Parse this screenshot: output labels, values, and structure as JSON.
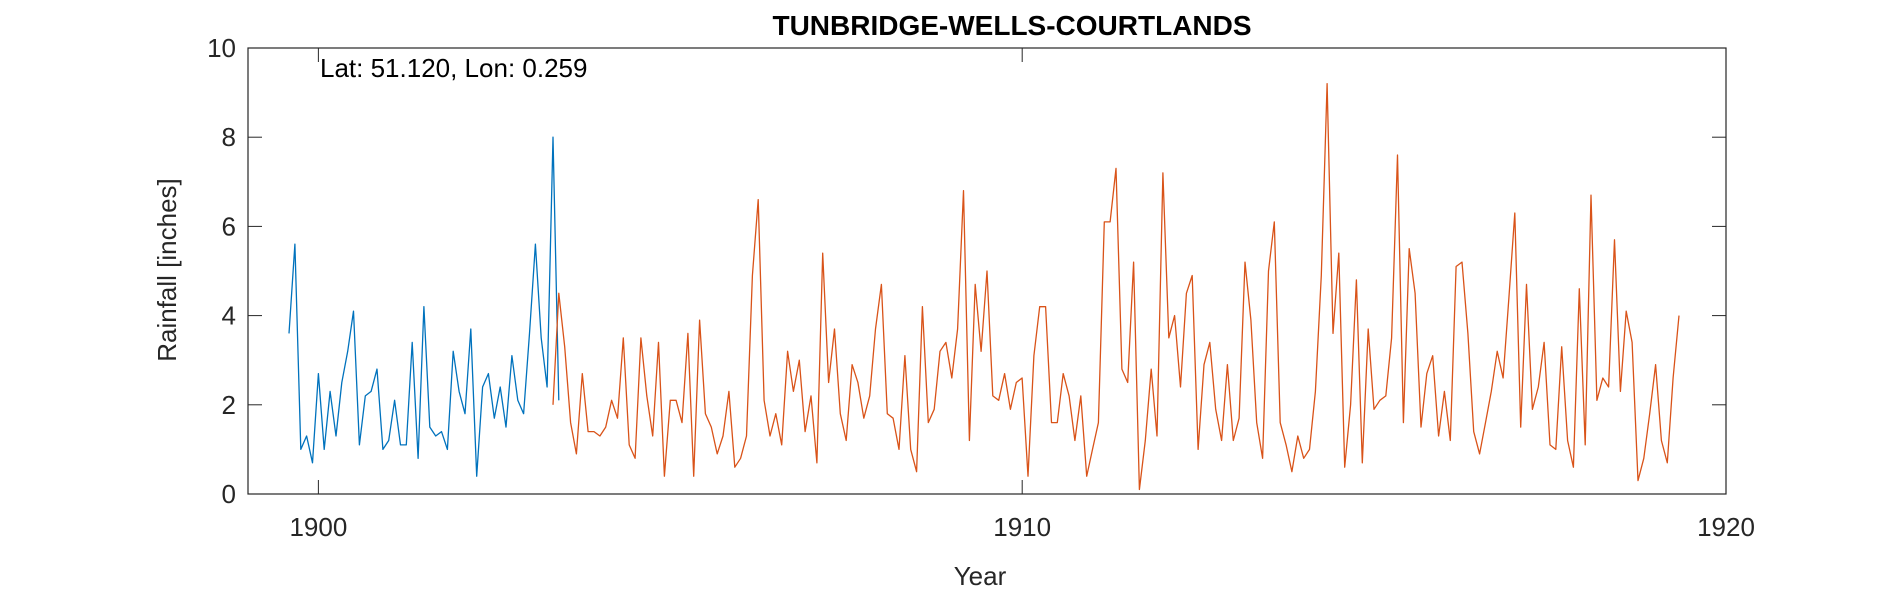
{
  "chart_data": {
    "type": "line",
    "title": "TUNBRIDGE-WELLS-COURTLANDS",
    "annotation": "Lat: 51.120, Lon: 0.259",
    "xlabel": "Year",
    "ylabel": "Rainfall [inches]",
    "xlim": [
      1899,
      1920
    ],
    "ylim": [
      0,
      10
    ],
    "xticks": [
      1900,
      1910,
      1920
    ],
    "yticks": [
      0,
      2,
      4,
      6,
      8,
      10
    ],
    "grid": false,
    "series": [
      {
        "color": "#0072BD",
        "x_start": 1899.583,
        "x_step": 0.08333,
        "values": [
          3.6,
          5.6,
          1.0,
          1.3,
          0.7,
          2.7,
          1.0,
          2.3,
          1.3,
          2.5,
          3.2,
          4.1,
          1.1,
          2.2,
          2.3,
          2.8,
          1.0,
          1.2,
          2.1,
          1.1,
          1.1,
          3.4,
          0.8,
          4.2,
          1.5,
          1.3,
          1.4,
          1.0,
          3.2,
          2.3,
          1.8,
          3.7,
          0.4,
          2.4,
          2.7,
          1.7,
          2.4,
          1.5,
          3.1,
          2.1,
          1.8,
          3.6,
          5.6,
          3.5,
          2.4,
          8.0,
          2.1
        ]
      },
      {
        "color": "#D95319",
        "x_start": 1903.333,
        "x_step": 0.08333,
        "values": [
          2.0,
          4.5,
          3.3,
          1.6,
          0.9,
          2.7,
          1.4,
          1.4,
          1.3,
          1.5,
          2.1,
          1.7,
          3.5,
          1.1,
          0.8,
          3.5,
          2.2,
          1.3,
          3.4,
          0.4,
          2.1,
          2.1,
          1.6,
          3.6,
          0.4,
          3.9,
          1.8,
          1.5,
          0.9,
          1.3,
          2.3,
          0.6,
          0.8,
          1.3,
          4.9,
          6.6,
          2.1,
          1.3,
          1.8,
          1.1,
          3.2,
          2.3,
          3.0,
          1.4,
          2.2,
          0.7,
          5.4,
          2.5,
          3.7,
          1.8,
          1.2,
          2.9,
          2.5,
          1.7,
          2.2,
          3.7,
          4.7,
          1.8,
          1.7,
          1.0,
          3.1,
          1.0,
          0.5,
          4.2,
          1.6,
          1.9,
          3.2,
          3.4,
          2.6,
          3.7,
          6.8,
          1.2,
          4.7,
          3.2,
          5.0,
          2.2,
          2.1,
          2.7,
          1.9,
          2.5,
          2.6,
          0.4,
          3.1,
          4.2,
          4.2,
          1.6,
          1.6,
          2.7,
          2.2,
          1.2,
          2.2,
          0.4,
          1.0,
          1.6,
          6.1,
          6.1,
          7.3,
          2.8,
          2.5,
          5.2,
          0.1,
          1.2,
          2.8,
          1.3,
          7.2,
          3.5,
          4.0,
          2.4,
          4.5,
          4.9,
          1.0,
          2.9,
          3.4,
          1.9,
          1.2,
          2.9,
          1.2,
          1.7,
          5.2,
          3.9,
          1.6,
          0.8,
          5.0,
          6.1,
          1.6,
          1.1,
          0.5,
          1.3,
          0.8,
          1.0,
          2.3,
          4.9,
          9.2,
          3.6,
          5.4,
          0.6,
          2.0,
          4.8,
          0.7,
          3.7,
          1.9,
          2.1,
          2.2,
          3.5,
          7.6,
          1.6,
          5.5,
          4.5,
          1.5,
          2.7,
          3.1,
          1.3,
          2.3,
          1.2,
          5.1,
          5.2,
          3.6,
          1.4,
          0.9,
          1.6,
          2.3,
          3.2,
          2.6,
          4.4,
          6.3,
          1.5,
          4.7,
          1.9,
          2.4,
          3.4,
          1.1,
          1.0,
          3.3,
          1.2,
          0.6,
          4.6,
          1.1,
          6.7,
          2.1,
          2.6,
          2.4,
          5.7,
          2.3,
          4.1,
          3.4,
          0.3,
          0.8,
          1.8,
          2.9,
          1.2,
          0.7,
          2.6,
          4.0
        ]
      }
    ]
  }
}
